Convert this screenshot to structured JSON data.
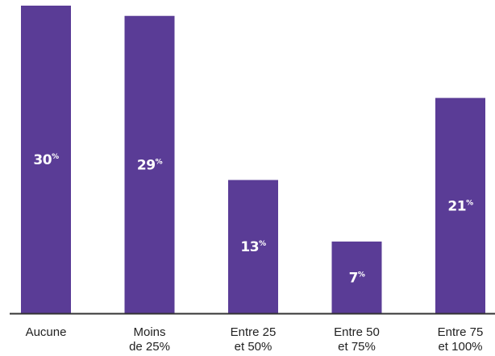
{
  "chart_data": {
    "type": "bar",
    "categories": [
      [
        "Aucune"
      ],
      [
        "Moins",
        "de 25%"
      ],
      [
        "Entre 25",
        "et 50%"
      ],
      [
        "Entre 50",
        "et 75%"
      ],
      [
        "Entre 75",
        "et 100%"
      ]
    ],
    "values": [
      30,
      29,
      13,
      7,
      21
    ],
    "value_labels": [
      {
        "number": "30",
        "unit": "%"
      },
      {
        "number": "29",
        "unit": "%"
      },
      {
        "number": "13",
        "unit": "%"
      },
      {
        "number": "7",
        "unit": "%"
      },
      {
        "number": "21",
        "unit": "%"
      }
    ],
    "title": "",
    "xlabel": "",
    "ylabel": "",
    "grid": false,
    "legend": "none",
    "bar_color": "#5a3c96",
    "axis_color": "#333333"
  }
}
